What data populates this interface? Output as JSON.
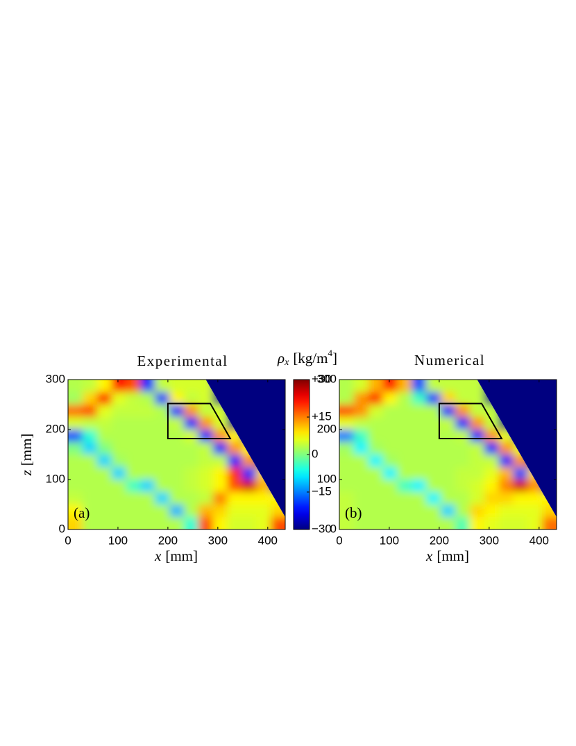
{
  "chart_data": [
    {
      "type": "heatmap",
      "title": "Experimental",
      "panel_label": "(a)",
      "x_label": [
        "x",
        "[mm]"
      ],
      "y_label": [
        "z",
        "[mm]"
      ],
      "xlim": [
        0,
        435
      ],
      "ylim": [
        0,
        300
      ],
      "xticks": [
        0,
        100,
        200,
        300,
        400
      ],
      "yticks": [
        0,
        100,
        200,
        300
      ],
      "x": [
        14.5,
        43.5,
        72.5,
        101.5,
        130.5,
        159.5,
        188.5,
        217.5,
        246.5,
        275.5,
        304.5,
        333.5,
        362.5,
        391.5,
        420.5
      ],
      "y": [
        287.5,
        262.5,
        237.5,
        212.5,
        187.5,
        162.5,
        137.5,
        112.5,
        87.5,
        62.5,
        37.5,
        12.5
      ],
      "z": [
        [
          3,
          4,
          8,
          22,
          18,
          -20,
          4,
          5,
          5,
          5,
          -30,
          -30,
          -30,
          -30,
          -30
        ],
        [
          2,
          10,
          22,
          6,
          4,
          3,
          -20,
          8,
          4,
          5,
          -30,
          -30,
          -30,
          -30,
          -30
        ],
        [
          16,
          18,
          6,
          4,
          4,
          4,
          3,
          -22,
          14,
          4,
          5,
          -30,
          -30,
          -30,
          -30
        ],
        [
          5,
          4,
          4,
          3,
          3,
          3,
          3,
          4,
          -22,
          14,
          5,
          -30,
          -30,
          -30,
          -30
        ],
        [
          -18,
          -5,
          3,
          3,
          3,
          3,
          3,
          3,
          5,
          -22,
          14,
          8,
          -30,
          -30,
          -30
        ],
        [
          0,
          -10,
          0,
          3,
          3,
          3,
          3,
          3,
          3,
          4,
          -22,
          14,
          8,
          -30,
          -30
        ],
        [
          3,
          3,
          -10,
          2,
          3,
          3,
          3,
          3,
          3,
          4,
          4,
          -22,
          14,
          -30,
          -30
        ],
        [
          3,
          3,
          3,
          -10,
          3,
          3,
          3,
          3,
          4,
          5,
          8,
          20,
          -20,
          10,
          -30
        ],
        [
          3,
          3,
          3,
          3,
          -4,
          -10,
          3,
          3,
          4,
          5,
          8,
          18,
          25,
          12,
          -30
        ],
        [
          4,
          3,
          3,
          3,
          3,
          3,
          -10,
          3,
          3,
          4,
          15,
          8,
          8,
          8,
          8
        ],
        [
          8,
          3,
          3,
          3,
          3,
          3,
          3,
          -12,
          3,
          12,
          10,
          6,
          6,
          6,
          10
        ],
        [
          10,
          3,
          3,
          3,
          3,
          3,
          3,
          3,
          -5,
          18,
          8,
          5,
          5,
          6,
          18
        ]
      ],
      "colorbar": {
        "label": [
          "ρ",
          "x",
          "[kg/m",
          "4",
          "]"
        ],
        "colormap": "jet",
        "clim": [
          -30,
          30
        ],
        "ticks": [
          {
            "value": 30,
            "label": "+30"
          },
          {
            "value": 15,
            "label": "+15"
          },
          0,
          {
            "value": -15,
            "label": "−15"
          },
          {
            "value": -30,
            "label": "−30"
          }
        ]
      }
    },
    {
      "type": "heatmap",
      "title": "Numerical",
      "panel_label": "(b)",
      "x_label": [
        "x",
        "[mm]"
      ],
      "xlim": [
        0,
        435
      ],
      "ylim": [
        0,
        300
      ],
      "xticks": [
        0,
        100,
        200,
        300,
        400
      ],
      "yticks": [
        0,
        100,
        200,
        300
      ],
      "x": [
        14.5,
        43.5,
        72.5,
        101.5,
        130.5,
        159.5,
        188.5,
        217.5,
        246.5,
        275.5,
        304.5,
        333.5,
        362.5,
        391.5,
        420.5
      ],
      "y": [
        287.5,
        262.5,
        237.5,
        212.5,
        187.5,
        162.5,
        137.5,
        112.5,
        87.5,
        62.5,
        37.5,
        12.5
      ],
      "z": [
        [
          3,
          5,
          12,
          22,
          12,
          -18,
          4,
          4,
          4,
          4,
          -30,
          -30,
          -30,
          -30,
          -30
        ],
        [
          3,
          14,
          20,
          8,
          3,
          -4,
          -20,
          10,
          4,
          4,
          -30,
          -30,
          -30,
          -30,
          -30
        ],
        [
          18,
          14,
          5,
          3,
          3,
          3,
          3,
          -22,
          14,
          4,
          4,
          -30,
          -30,
          -30,
          -30
        ],
        [
          6,
          4,
          3,
          3,
          3,
          3,
          3,
          4,
          -22,
          14,
          4,
          -30,
          -30,
          -30,
          -30
        ],
        [
          -15,
          -4,
          3,
          3,
          3,
          3,
          3,
          3,
          4,
          -22,
          14,
          6,
          -30,
          -30,
          -30
        ],
        [
          2,
          -8,
          2,
          3,
          3,
          3,
          3,
          3,
          3,
          4,
          -22,
          14,
          6,
          -30,
          -30
        ],
        [
          3,
          3,
          -8,
          2,
          3,
          3,
          3,
          3,
          3,
          4,
          4,
          -22,
          14,
          -30,
          -30
        ],
        [
          3,
          3,
          3,
          -8,
          3,
          3,
          3,
          3,
          4,
          4,
          6,
          12,
          -18,
          10,
          -30
        ],
        [
          3,
          3,
          3,
          3,
          -4,
          -8,
          3,
          3,
          4,
          5,
          8,
          15,
          25,
          14,
          -30
        ],
        [
          4,
          3,
          3,
          3,
          3,
          3,
          -8,
          3,
          3,
          5,
          10,
          10,
          8,
          8,
          8
        ],
        [
          4,
          3,
          3,
          3,
          3,
          3,
          3,
          -10,
          3,
          10,
          8,
          6,
          6,
          6,
          10
        ],
        [
          4,
          3,
          3,
          3,
          3,
          3,
          3,
          3,
          -3,
          8,
          6,
          5,
          5,
          6,
          16
        ]
      ]
    }
  ]
}
